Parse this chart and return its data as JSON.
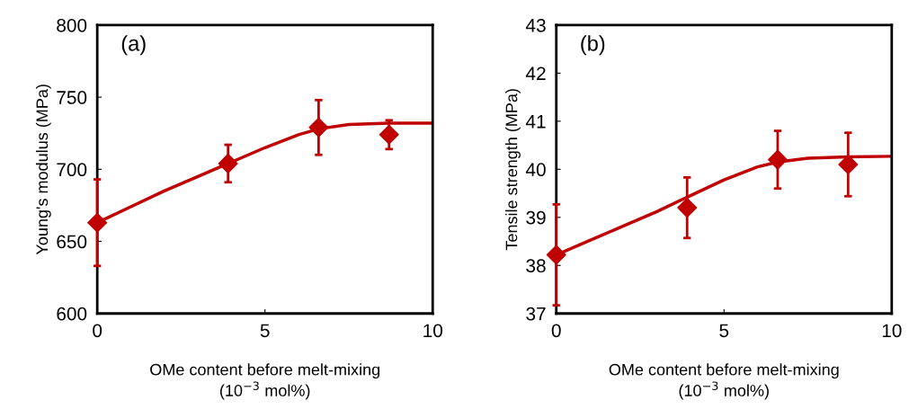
{
  "chart_data": [
    {
      "type": "scatter",
      "xlabel": "OMe content before melt-mixing\n(10$^{−3}$ mol%)",
      "ylabel": "Young's modulus (MPa)",
      "annotations": [
        "(a)"
      ],
      "xlim": [
        0,
        10
      ],
      "xticks": [
        0,
        5,
        10
      ],
      "ylim": [
        600,
        800
      ],
      "yticks": [
        600,
        650,
        700,
        750,
        800
      ],
      "grid": false,
      "legend": false,
      "series": [
        {
          "type": "line",
          "color": "#c00000",
          "x": [
            0,
            1,
            2,
            3,
            3.9,
            5,
            6,
            6.6,
            7.5,
            8.7,
            10
          ],
          "values": [
            663,
            674,
            685,
            695,
            704,
            715,
            724,
            728,
            731,
            732,
            732
          ],
          "marker": "none",
          "line_style": "solid"
        },
        {
          "color": "#c00000",
          "x": [
            0,
            3.9,
            6.6,
            8.7
          ],
          "values": [
            663,
            704,
            729,
            724
          ],
          "errors": [
            30,
            13,
            19,
            10
          ],
          "marker": "diamond"
        }
      ]
    },
    {
      "type": "scatter",
      "xlabel": "OMe content before melt-mixing\n(10$^{−3}$ mol%)",
      "ylabel": "Tensile strength (MPa)",
      "annotations": [
        "(b)"
      ],
      "xlim": [
        0,
        10
      ],
      "xticks": [
        0,
        5,
        10
      ],
      "ylim": [
        37,
        43
      ],
      "yticks": [
        37,
        38,
        39,
        40,
        41,
        42,
        43
      ],
      "grid": false,
      "legend": false,
      "series": [
        {
          "type": "line",
          "color": "#c00000",
          "x": [
            0,
            1,
            2,
            3,
            3.9,
            5,
            6,
            6.6,
            7.5,
            8.7,
            10
          ],
          "values": [
            38.22,
            38.52,
            38.82,
            39.12,
            39.42,
            39.78,
            40.05,
            40.15,
            40.23,
            40.26,
            40.27
          ],
          "marker": "none",
          "line_style": "solid"
        },
        {
          "color": "#c00000",
          "x": [
            0,
            3.9,
            6.6,
            8.7
          ],
          "values": [
            38.22,
            39.2,
            40.2,
            40.1
          ],
          "errors": [
            1.05,
            0.63,
            0.6,
            0.66
          ],
          "marker": "diamond"
        }
      ]
    }
  ]
}
